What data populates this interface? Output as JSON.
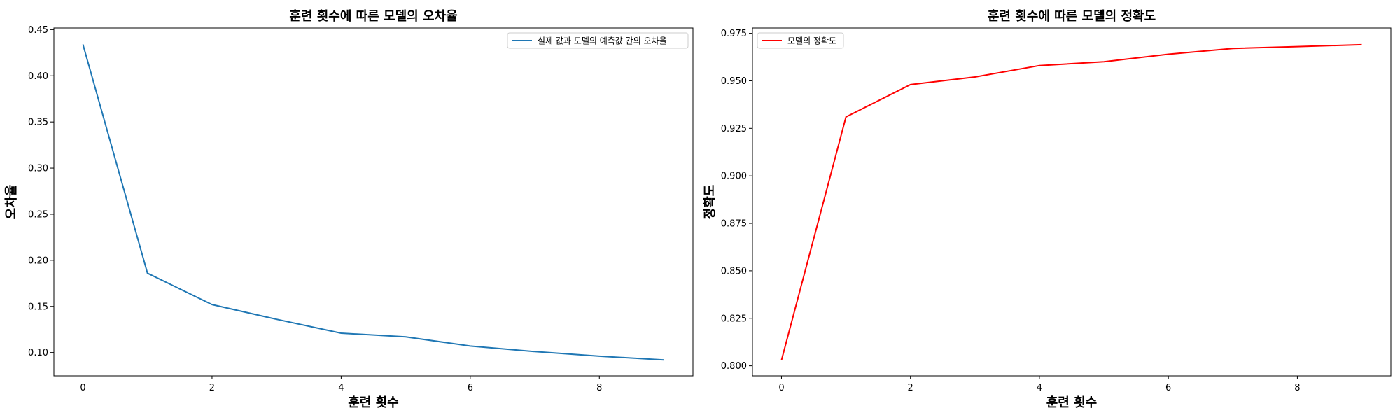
{
  "chart_data": [
    {
      "type": "line",
      "title": "훈련 횟수에 따른 모델의 오차율",
      "xlabel": "훈련 횟수",
      "ylabel": "오차율",
      "xlim": [
        -0.45,
        9.45
      ],
      "ylim": [
        0.0747,
        0.4518
      ],
      "xticks": [
        0,
        2,
        4,
        6,
        8
      ],
      "yticks": [
        0.1,
        0.15,
        0.2,
        0.25,
        0.3,
        0.35,
        0.4,
        0.45
      ],
      "ytick_decimals": 2,
      "grid": false,
      "legend_position": "top-right",
      "series": [
        {
          "name": "실제 값과 모델의 예측값 간의 오차율",
          "color": "#1f77b4",
          "x": [
            0,
            1,
            2,
            3,
            4,
            5,
            6,
            7,
            8,
            9
          ],
          "values": [
            0.434,
            0.186,
            0.152,
            0.136,
            0.121,
            0.117,
            0.107,
            0.101,
            0.096,
            0.092
          ]
        }
      ]
    },
    {
      "type": "line",
      "title": "훈련 횟수에 따른 모델의 정확도",
      "xlabel": "훈련 횟수",
      "ylabel": "정확도",
      "xlim": [
        -0.45,
        9.45
      ],
      "ylim": [
        0.7947,
        0.9778
      ],
      "xticks": [
        0,
        2,
        4,
        6,
        8
      ],
      "yticks": [
        0.8,
        0.825,
        0.85,
        0.875,
        0.9,
        0.925,
        0.95,
        0.975
      ],
      "ytick_decimals": 3,
      "grid": false,
      "legend_position": "top-left",
      "series": [
        {
          "name": "모델의 정확도",
          "color": "#ff0000",
          "x": [
            0,
            1,
            2,
            3,
            4,
            5,
            6,
            7,
            8,
            9
          ],
          "values": [
            0.803,
            0.931,
            0.948,
            0.952,
            0.958,
            0.96,
            0.964,
            0.967,
            0.968,
            0.969
          ]
        }
      ]
    }
  ]
}
